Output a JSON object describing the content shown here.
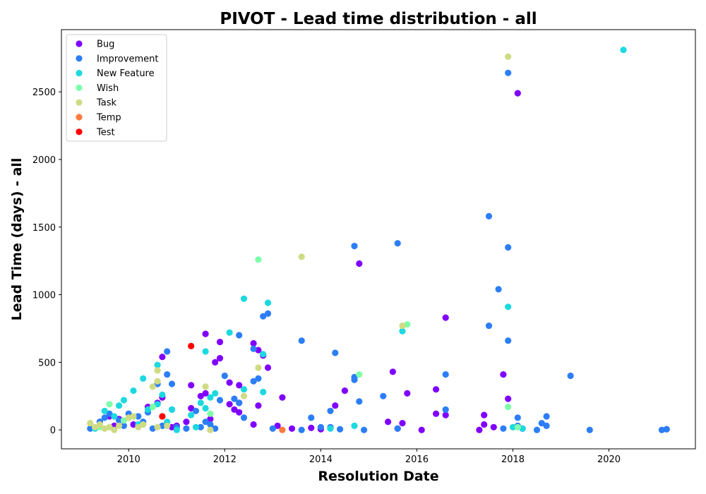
{
  "chart_data": {
    "type": "scatter",
    "title": "PIVOT - Lead time distribution - all",
    "xlabel": "Resolution Date",
    "ylabel": "Lead Time (days) - all",
    "xlim": [
      2008.6,
      2021.8
    ],
    "ylim": [
      -140,
      2960
    ],
    "x_ticks": [
      2010,
      2012,
      2014,
      2016,
      2018,
      2020
    ],
    "y_ticks": [
      0,
      500,
      1000,
      1500,
      2000,
      2500
    ],
    "grid": false,
    "legend_position": "top-left",
    "series": [
      {
        "name": "Bug",
        "color": "#8000ff",
        "points": [
          [
            2009.4,
            60
          ],
          [
            2009.6,
            100
          ],
          [
            2009.8,
            80
          ],
          [
            2010.1,
            40
          ],
          [
            2010.4,
            170
          ],
          [
            2010.6,
            200
          ],
          [
            2010.7,
            540
          ],
          [
            2010.7,
            240
          ],
          [
            2011.2,
            60
          ],
          [
            2011.3,
            330
          ],
          [
            2011.3,
            160
          ],
          [
            2011.5,
            250
          ],
          [
            2011.6,
            710
          ],
          [
            2011.6,
            270
          ],
          [
            2011.7,
            80
          ],
          [
            2011.8,
            500
          ],
          [
            2011.9,
            650
          ],
          [
            2011.9,
            530
          ],
          [
            2012.1,
            350
          ],
          [
            2012.1,
            190
          ],
          [
            2012.2,
            150
          ],
          [
            2012.3,
            330
          ],
          [
            2012.3,
            200
          ],
          [
            2012.3,
            130
          ],
          [
            2012.6,
            640
          ],
          [
            2012.7,
            590
          ],
          [
            2012.7,
            180
          ],
          [
            2012.8,
            550
          ],
          [
            2012.9,
            460
          ],
          [
            2013.2,
            240
          ],
          [
            2012.6,
            40
          ],
          [
            2013.1,
            30
          ],
          [
            2013.4,
            10
          ],
          [
            2014.3,
            180
          ],
          [
            2014.5,
            290
          ],
          [
            2014.8,
            1230
          ],
          [
            2015.4,
            60
          ],
          [
            2015.5,
            430
          ],
          [
            2015.7,
            50
          ],
          [
            2015.8,
            270
          ],
          [
            2016.4,
            300
          ],
          [
            2016.4,
            120
          ],
          [
            2016.6,
            830
          ],
          [
            2016.6,
            110
          ],
          [
            2017.3,
            0
          ],
          [
            2017.4,
            110
          ],
          [
            2017.4,
            40
          ],
          [
            2017.6,
            20
          ],
          [
            2017.8,
            410
          ],
          [
            2017.9,
            230
          ],
          [
            2018.1,
            2490
          ],
          [
            2018.2,
            10
          ],
          [
            2021.2,
            5
          ],
          [
            2016.1,
            0
          ],
          [
            2013.8,
            15
          ],
          [
            2011.0,
            30
          ],
          [
            2010.9,
            20
          ],
          [
            2009.7,
            30
          ],
          [
            2014.0,
            5
          ],
          [
            2015.6,
            10
          ]
        ]
      },
      {
        "name": "Improvement",
        "color": "#2c7ef7",
        "points": [
          [
            2009.2,
            10
          ],
          [
            2009.4,
            60
          ],
          [
            2009.5,
            90
          ],
          [
            2009.6,
            120
          ],
          [
            2009.8,
            70
          ],
          [
            2009.9,
            30
          ],
          [
            2010.0,
            120
          ],
          [
            2010.2,
            100
          ],
          [
            2010.3,
            60
          ],
          [
            2010.4,
            130
          ],
          [
            2010.5,
            10
          ],
          [
            2010.6,
            340
          ],
          [
            2010.7,
            30
          ],
          [
            2010.8,
            580
          ],
          [
            2010.8,
            410
          ],
          [
            2010.9,
            340
          ],
          [
            2010.9,
            150
          ],
          [
            2011.0,
            20
          ],
          [
            2011.2,
            10
          ],
          [
            2011.5,
            20
          ],
          [
            2011.6,
            60
          ],
          [
            2011.7,
            40
          ],
          [
            2011.8,
            10
          ],
          [
            2011.9,
            220
          ],
          [
            2012.0,
            400
          ],
          [
            2012.2,
            230
          ],
          [
            2012.3,
            200
          ],
          [
            2012.3,
            700
          ],
          [
            2012.4,
            90
          ],
          [
            2012.6,
            600
          ],
          [
            2012.6,
            360
          ],
          [
            2012.7,
            380
          ],
          [
            2012.8,
            840
          ],
          [
            2012.9,
            860
          ],
          [
            2013.0,
            10
          ],
          [
            2013.6,
            660
          ],
          [
            2013.6,
            0
          ],
          [
            2013.8,
            90
          ],
          [
            2014.0,
            20
          ],
          [
            2014.2,
            20
          ],
          [
            2014.3,
            570
          ],
          [
            2014.2,
            140
          ],
          [
            2014.4,
            5
          ],
          [
            2014.7,
            1360
          ],
          [
            2014.7,
            390
          ],
          [
            2014.7,
            370
          ],
          [
            2014.8,
            210
          ],
          [
            2014.9,
            0
          ],
          [
            2015.3,
            250
          ],
          [
            2015.6,
            1380
          ],
          [
            2015.6,
            10
          ],
          [
            2016.6,
            410
          ],
          [
            2016.6,
            150
          ],
          [
            2017.5,
            1580
          ],
          [
            2017.5,
            770
          ],
          [
            2017.7,
            1040
          ],
          [
            2017.8,
            10
          ],
          [
            2017.9,
            2640
          ],
          [
            2017.9,
            1350
          ],
          [
            2017.9,
            660
          ],
          [
            2018.1,
            90
          ],
          [
            2018.1,
            30
          ],
          [
            2018.2,
            10
          ],
          [
            2018.5,
            0
          ],
          [
            2018.6,
            50
          ],
          [
            2018.7,
            100
          ],
          [
            2018.7,
            30
          ],
          [
            2019.2,
            400
          ],
          [
            2019.6,
            0
          ],
          [
            2021.1,
            0
          ],
          [
            2021.2,
            5
          ],
          [
            2011.4,
            140
          ]
        ]
      },
      {
        "name": "New Feature",
        "color": "#1cd9e0",
        "points": [
          [
            2009.5,
            140
          ],
          [
            2009.7,
            100
          ],
          [
            2009.8,
            180
          ],
          [
            2009.9,
            220
          ],
          [
            2010.1,
            290
          ],
          [
            2010.3,
            380
          ],
          [
            2010.4,
            150
          ],
          [
            2010.6,
            480
          ],
          [
            2010.6,
            190
          ],
          [
            2010.7,
            260
          ],
          [
            2010.8,
            60
          ],
          [
            2010.9,
            150
          ],
          [
            2011.3,
            110
          ],
          [
            2011.4,
            20
          ],
          [
            2011.5,
            200
          ],
          [
            2011.6,
            580
          ],
          [
            2011.6,
            160
          ],
          [
            2011.7,
            240
          ],
          [
            2011.8,
            270
          ],
          [
            2012.1,
            720
          ],
          [
            2012.4,
            970
          ],
          [
            2012.4,
            300
          ],
          [
            2012.8,
            560
          ],
          [
            2012.8,
            280
          ],
          [
            2012.9,
            940
          ],
          [
            2014.2,
            10
          ],
          [
            2014.7,
            30
          ],
          [
            2015.7,
            730
          ],
          [
            2017.9,
            910
          ],
          [
            2018.0,
            20
          ],
          [
            2018.2,
            10
          ],
          [
            2020.3,
            2810
          ],
          [
            2009.3,
            10
          ],
          [
            2010.2,
            40
          ],
          [
            2011.0,
            0
          ]
        ]
      },
      {
        "name": "Wish",
        "color": "#7effa9",
        "points": [
          [
            2009.6,
            190
          ],
          [
            2009.9,
            70
          ],
          [
            2010.5,
            170
          ],
          [
            2011.7,
            120
          ],
          [
            2012.7,
            1260
          ],
          [
            2014.8,
            410
          ],
          [
            2015.8,
            780
          ],
          [
            2017.9,
            170
          ],
          [
            2018.1,
            20
          ],
          [
            2009.4,
            20
          ]
        ]
      },
      {
        "name": "Task",
        "color": "#cfdb84",
        "points": [
          [
            2009.2,
            50
          ],
          [
            2009.3,
            20
          ],
          [
            2009.4,
            40
          ],
          [
            2009.5,
            10
          ],
          [
            2009.6,
            20
          ],
          [
            2009.7,
            0
          ],
          [
            2009.8,
            30
          ],
          [
            2010.0,
            90
          ],
          [
            2010.1,
            100
          ],
          [
            2010.2,
            20
          ],
          [
            2010.3,
            40
          ],
          [
            2010.5,
            320
          ],
          [
            2010.6,
            440
          ],
          [
            2010.6,
            360
          ],
          [
            2010.7,
            100
          ],
          [
            2010.8,
            30
          ],
          [
            2011.6,
            320
          ],
          [
            2011.7,
            0
          ],
          [
            2012.4,
            250
          ],
          [
            2012.7,
            460
          ],
          [
            2013.6,
            1280
          ],
          [
            2015.7,
            770
          ],
          [
            2017.9,
            2760
          ],
          [
            2010.6,
            20
          ]
        ]
      },
      {
        "name": "Temp",
        "color": "#ff7a3d",
        "points": [
          [
            2013.2,
            0
          ]
        ]
      },
      {
        "name": "Test",
        "color": "#ff0000",
        "points": [
          [
            2011.3,
            620
          ],
          [
            2010.7,
            100
          ]
        ]
      }
    ]
  }
}
